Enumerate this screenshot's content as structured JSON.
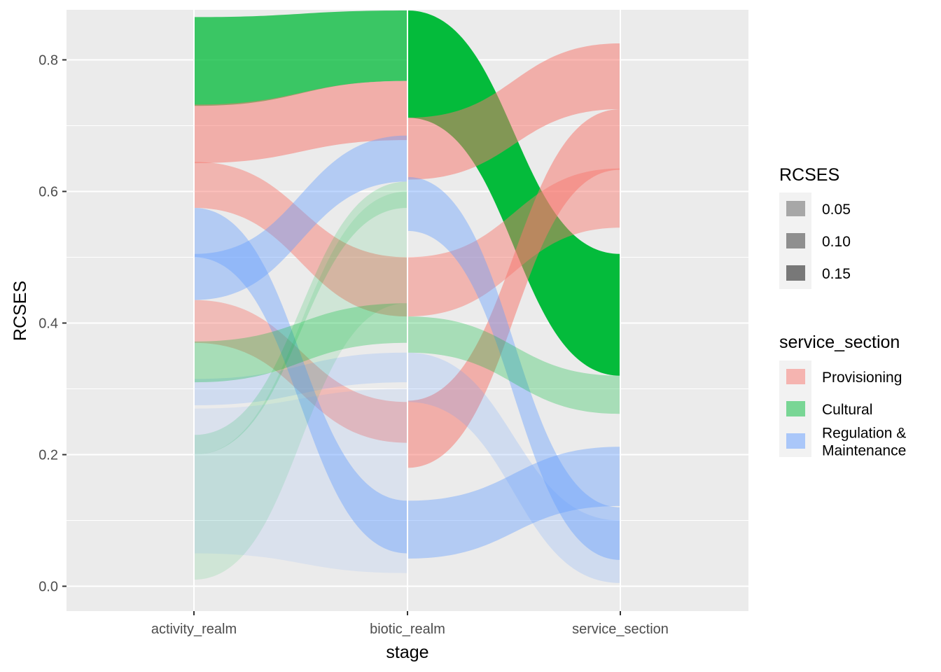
{
  "chart_data": {
    "type": "alluvial",
    "xlabel": "stage",
    "ylabel": "RCSES",
    "stages": [
      "activity_realm",
      "biotic_realm",
      "service_section"
    ],
    "ylim": [
      -0.035,
      0.875
    ],
    "y_ticks": [
      0.0,
      0.2,
      0.4,
      0.6,
      0.8
    ],
    "y_tick_labels": [
      "0.0",
      "0.2",
      "0.4",
      "0.6",
      "0.8"
    ],
    "grid": true,
    "legend_position": "right",
    "legends": {
      "alpha": {
        "title": "RCSES",
        "entries": [
          {
            "label": "0.05",
            "value": 0.05
          },
          {
            "label": "0.10",
            "value": 0.1
          },
          {
            "label": "0.15",
            "value": 0.15
          }
        ]
      },
      "fill": {
        "title": "service_section",
        "entries": [
          {
            "label": "Provisioning",
            "color": "#F8766D"
          },
          {
            "label": "Cultural",
            "color": "#00BA38"
          },
          {
            "label": "Regulation &\nMaintenance",
            "color": "#619CFF"
          }
        ]
      }
    },
    "flows": [
      {
        "segment": 0,
        "group": "Cultural",
        "from": [
          0.73,
          0.865
        ],
        "to": [
          0.768,
          0.875
        ],
        "weight": 0.13
      },
      {
        "segment": 0,
        "group": "Provisioning",
        "from": [
          0.643,
          0.732
        ],
        "to": [
          0.678,
          0.768
        ],
        "weight": 0.09
      },
      {
        "segment": 0,
        "group": "Provisioning",
        "from": [
          0.575,
          0.645
        ],
        "to": [
          0.41,
          0.5
        ],
        "weight": 0.08
      },
      {
        "segment": 0,
        "group": "Provisioning",
        "from": [
          0.37,
          0.435
        ],
        "to": [
          0.218,
          0.28
        ],
        "weight": 0.07
      },
      {
        "segment": 0,
        "group": "Regulation &\nMaintenance",
        "from": [
          0.435,
          0.505
        ],
        "to": [
          0.615,
          0.685
        ],
        "weight": 0.07
      },
      {
        "segment": 0,
        "group": "Regulation &\nMaintenance",
        "from": [
          0.5,
          0.575
        ],
        "to": [
          0.05,
          0.13
        ],
        "weight": 0.07
      },
      {
        "segment": 0,
        "group": "Regulation &\nMaintenance",
        "from": [
          0.275,
          0.315
        ],
        "to": [
          0.31,
          0.355
        ],
        "weight": 0.035
      },
      {
        "segment": 0,
        "group": "Cultural",
        "from": [
          0.31,
          0.372
        ],
        "to": [
          0.37,
          0.43
        ],
        "weight": 0.05
      },
      {
        "segment": 0,
        "group": "Cultural",
        "from": [
          0.2,
          0.23
        ],
        "to": [
          0.575,
          0.615
        ],
        "weight": 0.03
      },
      {
        "segment": 0,
        "group": "Cultural",
        "from": [
          0.01,
          0.2
        ],
        "to": [
          0.43,
          0.6
        ],
        "weight": 0.02
      },
      {
        "segment": 0,
        "group": "Regulation &\nMaintenance",
        "from": [
          0.05,
          0.27
        ],
        "to": [
          0.02,
          0.3
        ],
        "weight": 0.02
      },
      {
        "segment": 1,
        "group": "Cultural",
        "from": [
          0.712,
          0.875
        ],
        "to": [
          0.32,
          0.505
        ],
        "weight": 0.17
      },
      {
        "segment": 1,
        "group": "Provisioning",
        "from": [
          0.618,
          0.712
        ],
        "to": [
          0.725,
          0.825
        ],
        "weight": 0.09
      },
      {
        "segment": 1,
        "group": "Provisioning",
        "from": [
          0.18,
          0.282
        ],
        "to": [
          0.633,
          0.725
        ],
        "weight": 0.09
      },
      {
        "segment": 1,
        "group": "Provisioning",
        "from": [
          0.41,
          0.5
        ],
        "to": [
          0.545,
          0.635
        ],
        "weight": 0.08
      },
      {
        "segment": 1,
        "group": "Regulation &\nMaintenance",
        "from": [
          0.54,
          0.622
        ],
        "to": [
          0.04,
          0.12
        ],
        "weight": 0.07
      },
      {
        "segment": 1,
        "group": "Regulation &\nMaintenance",
        "from": [
          0.042,
          0.13
        ],
        "to": [
          0.122,
          0.212
        ],
        "weight": 0.07
      },
      {
        "segment": 1,
        "group": "Cultural",
        "from": [
          0.355,
          0.41
        ],
        "to": [
          0.262,
          0.32
        ],
        "weight": 0.05
      },
      {
        "segment": 1,
        "group": "Regulation &\nMaintenance",
        "from": [
          0.28,
          0.355
        ],
        "to": [
          0.005,
          0.1
        ],
        "weight": 0.035
      }
    ]
  }
}
